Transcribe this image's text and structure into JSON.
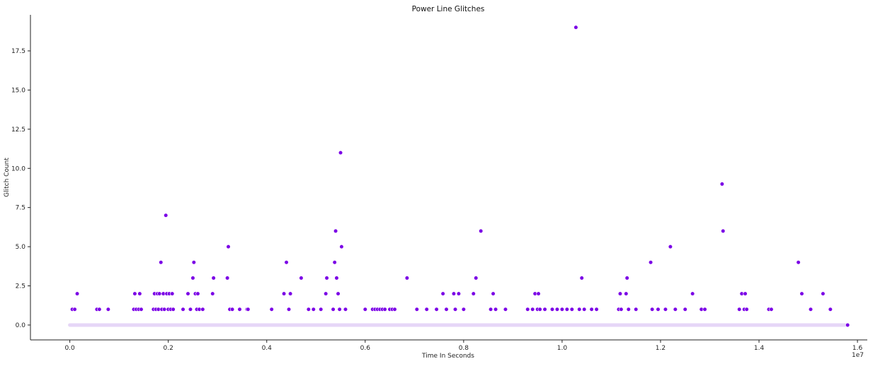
{
  "chart_data": {
    "type": "scatter",
    "title": "Power Line Glitches",
    "xlabel": "Time In Seconds",
    "ylabel": "Glitch Count",
    "x_offset_label": "1e7",
    "xlim": [
      -0.08,
      1.62
    ],
    "ylim": [
      -0.95,
      19.8
    ],
    "x_ticks": [
      0.0,
      0.2,
      0.4,
      0.6,
      0.8,
      1.0,
      1.2,
      1.4,
      1.6
    ],
    "x_tick_labels": [
      "0.0",
      "0.2",
      "0.4",
      "0.6",
      "0.8",
      "1.0",
      "1.2",
      "1.4",
      "1.6"
    ],
    "y_ticks": [
      0.0,
      2.5,
      5.0,
      7.5,
      10.0,
      12.5,
      15.0,
      17.5
    ],
    "y_tick_labels": [
      "0.0",
      "2.5",
      "5.0",
      "7.5",
      "10.0",
      "12.5",
      "15.0",
      "17.5"
    ],
    "grid": false,
    "marker_color": "#7b00e6",
    "baseline_color": "#e6d6f7",
    "baseline": {
      "x_start": 0.0,
      "x_end": 1.58,
      "y": 0
    },
    "points": [
      [
        0.005,
        1
      ],
      [
        0.01,
        1
      ],
      [
        0.015,
        2
      ],
      [
        0.055,
        1
      ],
      [
        0.06,
        1
      ],
      [
        0.078,
        1
      ],
      [
        0.13,
        1
      ],
      [
        0.132,
        2
      ],
      [
        0.135,
        1
      ],
      [
        0.14,
        1
      ],
      [
        0.142,
        2
      ],
      [
        0.145,
        1
      ],
      [
        0.17,
        1
      ],
      [
        0.172,
        2
      ],
      [
        0.175,
        1
      ],
      [
        0.178,
        2
      ],
      [
        0.18,
        1
      ],
      [
        0.182,
        2
      ],
      [
        0.185,
        4
      ],
      [
        0.187,
        1
      ],
      [
        0.19,
        2
      ],
      [
        0.192,
        1
      ],
      [
        0.195,
        7
      ],
      [
        0.197,
        2
      ],
      [
        0.2,
        1
      ],
      [
        0.202,
        2
      ],
      [
        0.205,
        1
      ],
      [
        0.208,
        2
      ],
      [
        0.21,
        1
      ],
      [
        0.23,
        1
      ],
      [
        0.24,
        2
      ],
      [
        0.245,
        1
      ],
      [
        0.25,
        3
      ],
      [
        0.252,
        4
      ],
      [
        0.255,
        2
      ],
      [
        0.258,
        1
      ],
      [
        0.26,
        2
      ],
      [
        0.263,
        1
      ],
      [
        0.27,
        1
      ],
      [
        0.29,
        2
      ],
      [
        0.292,
        3
      ],
      [
        0.32,
        3
      ],
      [
        0.322,
        5
      ],
      [
        0.325,
        1
      ],
      [
        0.33,
        1
      ],
      [
        0.345,
        1
      ],
      [
        0.36,
        1
      ],
      [
        0.362,
        1
      ],
      [
        0.41,
        1
      ],
      [
        0.435,
        2
      ],
      [
        0.44,
        4
      ],
      [
        0.445,
        1
      ],
      [
        0.448,
        2
      ],
      [
        0.47,
        3
      ],
      [
        0.485,
        1
      ],
      [
        0.495,
        1
      ],
      [
        0.51,
        1
      ],
      [
        0.52,
        2
      ],
      [
        0.522,
        3
      ],
      [
        0.535,
        1
      ],
      [
        0.538,
        4
      ],
      [
        0.54,
        6
      ],
      [
        0.542,
        3
      ],
      [
        0.545,
        2
      ],
      [
        0.548,
        1
      ],
      [
        0.55,
        11
      ],
      [
        0.552,
        5
      ],
      [
        0.56,
        1
      ],
      [
        0.6,
        1
      ],
      [
        0.615,
        1
      ],
      [
        0.62,
        1
      ],
      [
        0.625,
        1
      ],
      [
        0.63,
        1
      ],
      [
        0.635,
        1
      ],
      [
        0.64,
        1
      ],
      [
        0.65,
        1
      ],
      [
        0.655,
        1
      ],
      [
        0.66,
        1
      ],
      [
        0.685,
        3
      ],
      [
        0.705,
        1
      ],
      [
        0.725,
        1
      ],
      [
        0.745,
        1
      ],
      [
        0.758,
        2
      ],
      [
        0.765,
        1
      ],
      [
        0.78,
        2
      ],
      [
        0.783,
        1
      ],
      [
        0.79,
        2
      ],
      [
        0.8,
        1
      ],
      [
        0.82,
        2
      ],
      [
        0.825,
        3
      ],
      [
        0.835,
        6
      ],
      [
        0.855,
        1
      ],
      [
        0.86,
        2
      ],
      [
        0.865,
        1
      ],
      [
        0.885,
        1
      ],
      [
        0.93,
        1
      ],
      [
        0.94,
        1
      ],
      [
        0.945,
        2
      ],
      [
        0.95,
        1
      ],
      [
        0.952,
        2
      ],
      [
        0.955,
        1
      ],
      [
        0.965,
        1
      ],
      [
        0.98,
        1
      ],
      [
        0.99,
        1
      ],
      [
        1.0,
        1
      ],
      [
        1.01,
        1
      ],
      [
        1.02,
        1
      ],
      [
        1.028,
        19
      ],
      [
        1.035,
        1
      ],
      [
        1.04,
        3
      ],
      [
        1.045,
        1
      ],
      [
        1.06,
        1
      ],
      [
        1.07,
        1
      ],
      [
        1.115,
        1
      ],
      [
        1.118,
        2
      ],
      [
        1.12,
        1
      ],
      [
        1.13,
        2
      ],
      [
        1.132,
        3
      ],
      [
        1.135,
        1
      ],
      [
        1.15,
        1
      ],
      [
        1.18,
        4
      ],
      [
        1.183,
        1
      ],
      [
        1.195,
        1
      ],
      [
        1.21,
        1
      ],
      [
        1.22,
        5
      ],
      [
        1.23,
        1
      ],
      [
        1.25,
        1
      ],
      [
        1.265,
        2
      ],
      [
        1.283,
        1
      ],
      [
        1.29,
        1
      ],
      [
        1.325,
        9
      ],
      [
        1.327,
        6
      ],
      [
        1.36,
        1
      ],
      [
        1.365,
        2
      ],
      [
        1.37,
        1
      ],
      [
        1.372,
        2
      ],
      [
        1.375,
        1
      ],
      [
        1.42,
        1
      ],
      [
        1.425,
        1
      ],
      [
        1.48,
        4
      ],
      [
        1.487,
        2
      ],
      [
        1.505,
        1
      ],
      [
        1.53,
        2
      ],
      [
        1.545,
        1
      ],
      [
        1.58,
        0
      ]
    ]
  }
}
